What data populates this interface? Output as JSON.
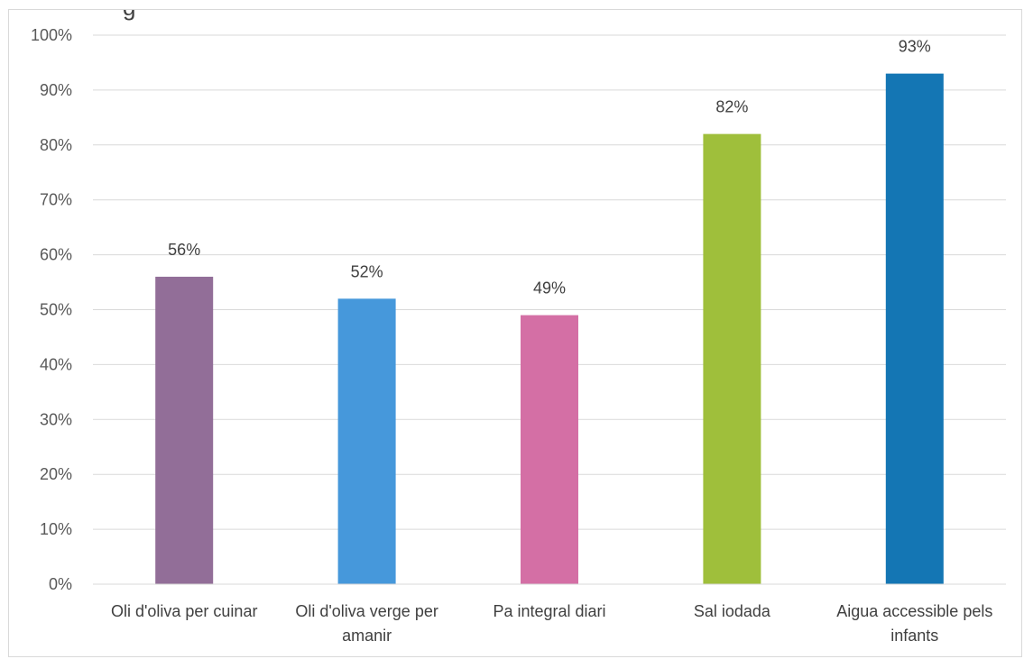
{
  "chart_data": {
    "type": "bar",
    "title": "g",
    "xlabel": "",
    "ylabel": "",
    "categories": [
      "Oli d'oliva per cuinar",
      "Oli d'oliva verge per amanir",
      "Pa integral diari",
      "Sal iodada",
      "Aigua accessible pels infants"
    ],
    "values": [
      56,
      52,
      49,
      82,
      93
    ],
    "value_labels": [
      "56%",
      "52%",
      "49%",
      "82%",
      "93%"
    ],
    "bar_colors": [
      "#926e98",
      "#4698db",
      "#d46fa5",
      "#9fbf3b",
      "#1476b4"
    ],
    "ylim": [
      0,
      100
    ],
    "yticks": [
      0,
      10,
      20,
      30,
      40,
      50,
      60,
      70,
      80,
      90,
      100
    ],
    "ytick_labels": [
      "0%",
      "10%",
      "20%",
      "30%",
      "40%",
      "50%",
      "60%",
      "70%",
      "80%",
      "90%",
      "100%"
    ],
    "grid": true,
    "legend": "none"
  }
}
